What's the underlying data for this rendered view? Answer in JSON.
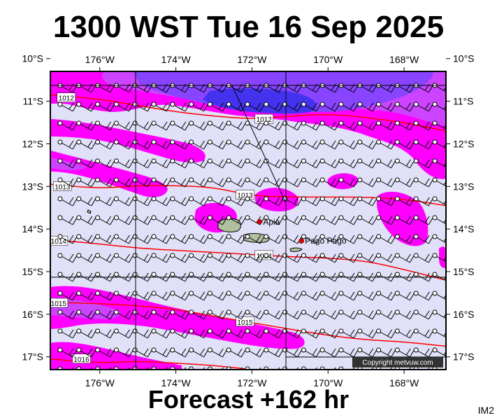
{
  "title": "1300 WST Tue 16 Sep 2025",
  "footer": "Forecast +162 hr",
  "image_code": "IM2",
  "copyright": "Copyright metvuw.com",
  "longitude_labels": [
    "176°W",
    "174°W",
    "172°W",
    "170°W",
    "168°W"
  ],
  "longitudes": [
    -176,
    -174,
    -172,
    -170,
    -168
  ],
  "latitude_labels": [
    "10°S",
    "11°S",
    "12°S",
    "13°S",
    "14°S",
    "15°S",
    "16°S",
    "17°S"
  ],
  "latitudes": [
    -10,
    -11,
    -12,
    -13,
    -14,
    -15,
    -16,
    -17
  ],
  "lon_range": [
    -177.3,
    -166.9
  ],
  "lat_range": [
    -10.3,
    -17.3
  ],
  "places": [
    {
      "name": "Apia",
      "lon": -171.8,
      "lat": -13.83
    },
    {
      "name": "Pago Pago",
      "lon": -170.7,
      "lat": -14.28
    }
  ],
  "isobars": [
    {
      "label": "1012",
      "points": [
        [
          -177.3,
          -10.85
        ],
        [
          -176,
          -10.95
        ],
        [
          -175,
          -11.1
        ],
        [
          -174,
          -11.25
        ],
        [
          -173,
          -11.35
        ],
        [
          -172,
          -11.42
        ],
        [
          -171,
          -11.35
        ],
        [
          -170,
          -11.3
        ],
        [
          -169,
          -11.38
        ],
        [
          -168,
          -11.5
        ],
        [
          -166.9,
          -11.7
        ]
      ],
      "label_positions": [
        [
          -176.9,
          -10.92
        ],
        [
          -171.7,
          -11.42
        ]
      ]
    },
    {
      "label": "1013",
      "points": [
        [
          -177.3,
          -12.95
        ],
        [
          -176,
          -13.05
        ],
        [
          -175,
          -12.98
        ],
        [
          -174,
          -12.98
        ],
        [
          -173,
          -13.02
        ],
        [
          -172,
          -13.22
        ],
        [
          -171,
          -13.25
        ],
        [
          -170,
          -13.25
        ],
        [
          -169,
          -13.25
        ],
        [
          -168,
          -13.3
        ],
        [
          -166.9,
          -13.45
        ]
      ],
      "label_positions": [
        [
          -177.0,
          -13.0
        ],
        [
          -172.2,
          -13.2
        ]
      ]
    },
    {
      "label": "1014",
      "points": [
        [
          -177.3,
          -14.25
        ],
        [
          -176,
          -14.35
        ],
        [
          -175,
          -14.45
        ],
        [
          -174,
          -14.5
        ],
        [
          -173,
          -14.55
        ],
        [
          -172,
          -14.6
        ],
        [
          -171,
          -14.65
        ],
        [
          -170,
          -14.68
        ],
        [
          -169,
          -14.75
        ],
        [
          -168,
          -14.95
        ],
        [
          -166.9,
          -15.2
        ]
      ],
      "label_positions": [
        [
          -177.1,
          -14.28
        ],
        [
          -171.7,
          -14.62
        ]
      ]
    },
    {
      "label": "1015",
      "points": [
        [
          -177.3,
          -15.72
        ],
        [
          -176,
          -15.75
        ],
        [
          -175,
          -15.8
        ],
        [
          -174,
          -15.88
        ],
        [
          -173,
          -16.05
        ],
        [
          -172,
          -16.2
        ],
        [
          -171,
          -16.35
        ],
        [
          -170,
          -16.5
        ],
        [
          -169,
          -16.6
        ],
        [
          -168,
          -16.65
        ],
        [
          -166.9,
          -16.75
        ]
      ],
      "label_positions": [
        [
          -177.1,
          -15.74
        ],
        [
          -172.2,
          -16.18
        ]
      ]
    },
    {
      "label": "1016",
      "points": [
        [
          -177.3,
          -17.05
        ],
        [
          -176,
          -17.15
        ],
        [
          -175,
          -17.1
        ],
        [
          -174,
          -17.15
        ],
        [
          -173,
          -17.2
        ],
        [
          -172,
          -17.3
        ]
      ],
      "label_positions": [
        [
          -176.5,
          -17.05
        ]
      ]
    }
  ],
  "colors": {
    "background": "#e0e0f8",
    "wind_light": "#ff00ff",
    "wind_medium": "#cc33ff",
    "wind_strong": "#7733ff",
    "wind_strongest": "#3322dd",
    "isobar": "#ff0000",
    "land": "#b0c0a0",
    "place_marker": "#dd0000",
    "grid": "#000000"
  }
}
